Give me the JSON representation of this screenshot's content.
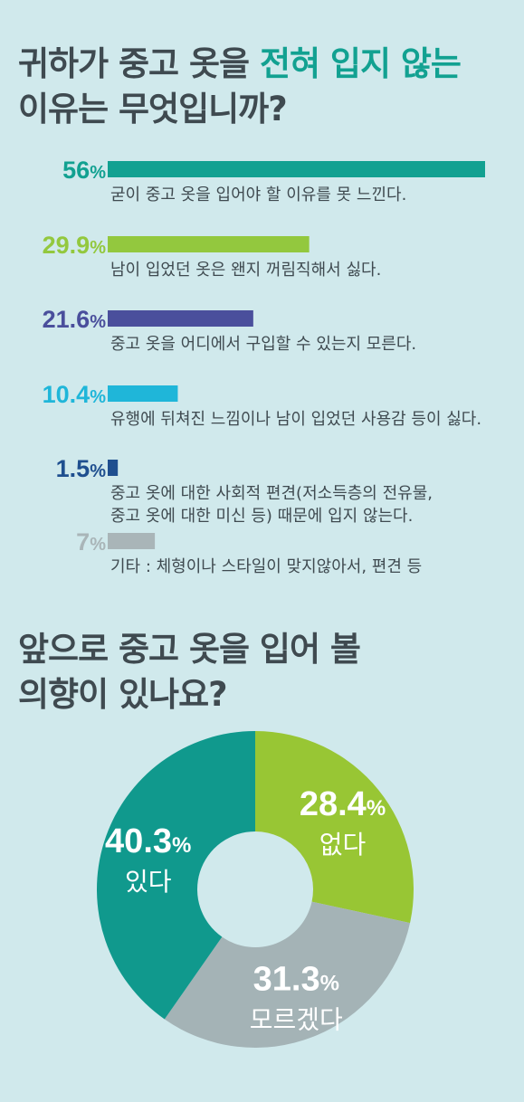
{
  "q1": {
    "title_line1_pre": "귀하가 중고 옷을 ",
    "title_line1_highlight": "전혀 입지 않는",
    "title_line2": "이유는 무엇입니까?"
  },
  "q2": {
    "title_line1": "앞으로 중고 옷을 입어 볼",
    "title_line2": "의향이 있나요?"
  },
  "chart_data": [
    {
      "type": "bar",
      "orientation": "horizontal",
      "title": "귀하가 중고 옷을 전혀 입지 않는 이유는 무엇입니까?",
      "categories": [
        "굳이 중고 옷을 입어야 할 이유를 못 느낀다.",
        "남이 입었던 옷은 왠지 꺼림직해서 싫다.",
        "중고 옷을 어디에서 구입할 수 있는지 모른다.",
        "유행에 뒤쳐진 느낌이나 남이 입었던 사용감 등이 싫다.",
        "중고 옷에 대한 사회적 편견(저소득층의 전유물, 중고 옷에 대한 미신 등) 때문에 입지 않는다.",
        "기타 : 체형이나 스타일이 맞지않아서, 편견 등"
      ],
      "lines": [
        [
          "굳이 중고 옷을 입어야 할 이유를 못 느낀다."
        ],
        [
          "남이 입었던 옷은 왠지 꺼림직해서 싫다."
        ],
        [
          "중고 옷을 어디에서 구입할 수 있는지 모른다."
        ],
        [
          "유행에 뒤쳐진 느낌이나 남이 입었던 사용감 등이 싫다."
        ],
        [
          "중고 옷에 대한 사회적 편견(저소득층의 전유물,",
          "중고 옷에 대한 미신 등) 때문에 입지 않는다."
        ],
        [
          "기타 : 체형이나 스타일이 맞지않아서, 편견 등"
        ]
      ],
      "values": [
        56,
        29.9,
        21.6,
        10.4,
        1.5,
        7
      ],
      "value_numbers": [
        "56",
        "29.9",
        "21.6",
        "10.4",
        "1.5",
        "7"
      ],
      "unit": "%",
      "colors": [
        "#12a191",
        "#93c83e",
        "#4a4f9c",
        "#1fb6d9",
        "#1f4f8f",
        "#a9b5b8"
      ]
    },
    {
      "type": "pie",
      "style": "donut",
      "title": "앞으로 중고 옷을 입어 볼 의향이 있나요?",
      "slices": [
        {
          "label": "없다",
          "value": 28.4,
          "value_text": "28.4",
          "unit": "%",
          "color": "#98c634"
        },
        {
          "label": "모르겠다",
          "value": 31.3,
          "value_text": "31.3",
          "unit": "%",
          "color": "#a4b3b6"
        },
        {
          "label": "있다",
          "value": 40.3,
          "value_text": "40.3",
          "unit": "%",
          "color": "#10998d"
        }
      ],
      "start_angle_deg": 0,
      "direction": "clockwise"
    }
  ]
}
